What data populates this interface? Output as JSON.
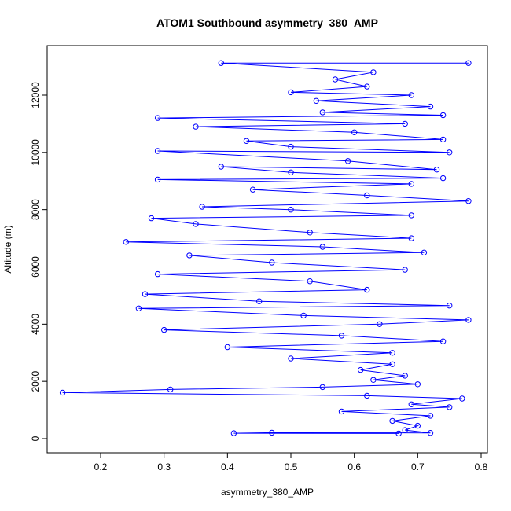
{
  "chart_data": {
    "type": "scatter",
    "title": "ATOM1 Southbound asymmetry_380_AMP",
    "xlabel": "asymmetry_380_AMP",
    "ylabel": "Altitude (m)",
    "xlim": [
      0.12,
      0.8
    ],
    "ylim": [
      0,
      13100
    ],
    "x_ticks": [
      "0.2",
      "0.3",
      "0.4",
      "0.5",
      "0.6",
      "0.7",
      "0.8"
    ],
    "y_ticks": [
      "0",
      "2000",
      "4000",
      "6000",
      "8000",
      "10000",
      "12000"
    ],
    "grid": false,
    "legend": "none",
    "series": [
      {
        "color": "#0000ff",
        "marker": "open-circle",
        "connected": true,
        "points": [
          [
            0.67,
            180
          ],
          [
            0.41,
            190
          ],
          [
            0.47,
            210
          ],
          [
            0.72,
            200
          ],
          [
            0.68,
            300
          ],
          [
            0.7,
            450
          ],
          [
            0.66,
            620
          ],
          [
            0.72,
            800
          ],
          [
            0.58,
            950
          ],
          [
            0.75,
            1100
          ],
          [
            0.69,
            1200
          ],
          [
            0.77,
            1400
          ],
          [
            0.62,
            1500
          ],
          [
            0.14,
            1610
          ],
          [
            0.31,
            1720
          ],
          [
            0.55,
            1800
          ],
          [
            0.7,
            1900
          ],
          [
            0.63,
            2050
          ],
          [
            0.68,
            2200
          ],
          [
            0.61,
            2400
          ],
          [
            0.66,
            2600
          ],
          [
            0.5,
            2800
          ],
          [
            0.66,
            3000
          ],
          [
            0.4,
            3200
          ],
          [
            0.74,
            3400
          ],
          [
            0.58,
            3600
          ],
          [
            0.3,
            3800
          ],
          [
            0.64,
            4000
          ],
          [
            0.78,
            4150
          ],
          [
            0.52,
            4300
          ],
          [
            0.26,
            4550
          ],
          [
            0.75,
            4650
          ],
          [
            0.45,
            4800
          ],
          [
            0.27,
            5050
          ],
          [
            0.62,
            5200
          ],
          [
            0.53,
            5500
          ],
          [
            0.29,
            5750
          ],
          [
            0.68,
            5900
          ],
          [
            0.47,
            6150
          ],
          [
            0.34,
            6400
          ],
          [
            0.71,
            6500
          ],
          [
            0.55,
            6700
          ],
          [
            0.24,
            6870
          ],
          [
            0.69,
            7000
          ],
          [
            0.53,
            7200
          ],
          [
            0.35,
            7500
          ],
          [
            0.28,
            7700
          ],
          [
            0.69,
            7800
          ],
          [
            0.5,
            8000
          ],
          [
            0.36,
            8100
          ],
          [
            0.78,
            8300
          ],
          [
            0.62,
            8500
          ],
          [
            0.44,
            8700
          ],
          [
            0.69,
            8900
          ],
          [
            0.29,
            9050
          ],
          [
            0.74,
            9100
          ],
          [
            0.5,
            9300
          ],
          [
            0.39,
            9500
          ],
          [
            0.73,
            9400
          ],
          [
            0.59,
            9700
          ],
          [
            0.29,
            10050
          ],
          [
            0.75,
            10000
          ],
          [
            0.5,
            10200
          ],
          [
            0.43,
            10400
          ],
          [
            0.74,
            10450
          ],
          [
            0.6,
            10700
          ],
          [
            0.35,
            10900
          ],
          [
            0.68,
            11000
          ],
          [
            0.29,
            11200
          ],
          [
            0.74,
            11300
          ],
          [
            0.55,
            11400
          ],
          [
            0.72,
            11600
          ],
          [
            0.54,
            11800
          ],
          [
            0.69,
            12000
          ],
          [
            0.5,
            12100
          ],
          [
            0.62,
            12300
          ],
          [
            0.57,
            12550
          ],
          [
            0.63,
            12800
          ],
          [
            0.39,
            13120
          ],
          [
            0.78,
            13120
          ]
        ]
      }
    ]
  }
}
